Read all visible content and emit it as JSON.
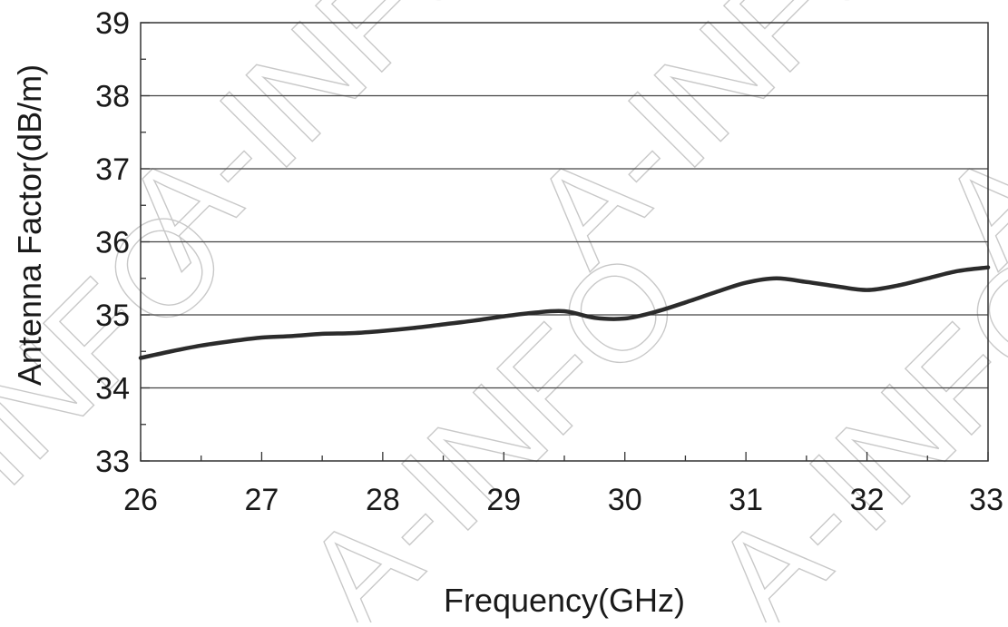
{
  "watermark": "A-INFO",
  "chart_data": {
    "type": "line",
    "title": "",
    "xlabel": "Frequency(GHz)",
    "ylabel": "Antenna Factor(dB/m)",
    "xlim": [
      26,
      33
    ],
    "ylim": [
      33,
      39
    ],
    "xticks": [
      "26",
      "27",
      "28",
      "29",
      "30",
      "31",
      "32",
      "33"
    ],
    "yticks": [
      "33",
      "34",
      "35",
      "36",
      "37",
      "38",
      "39"
    ],
    "grid": "horizontal",
    "legend": "none",
    "line_color": "#2b2b2b",
    "series": [
      {
        "x": [
          26.0,
          26.25,
          26.5,
          26.75,
          27.0,
          27.25,
          27.5,
          27.75,
          28.0,
          28.25,
          28.5,
          28.75,
          29.0,
          29.25,
          29.5,
          29.75,
          30.0,
          30.25,
          30.5,
          30.75,
          31.0,
          31.25,
          31.5,
          31.75,
          32.0,
          32.25,
          32.5,
          32.75,
          33.0
        ],
        "y": [
          34.41,
          34.5,
          34.58,
          34.64,
          34.69,
          34.71,
          34.74,
          34.75,
          34.78,
          34.82,
          34.87,
          34.92,
          34.98,
          35.03,
          35.05,
          34.96,
          34.95,
          35.04,
          35.17,
          35.31,
          35.44,
          35.5,
          35.45,
          35.39,
          35.34,
          35.4,
          35.5,
          35.6,
          35.65
        ]
      }
    ]
  }
}
